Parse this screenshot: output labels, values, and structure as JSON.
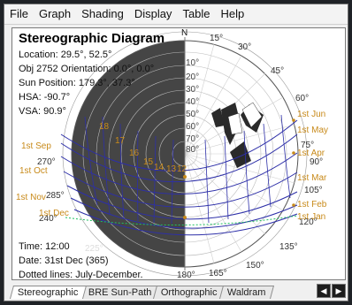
{
  "menu": [
    "File",
    "Graph",
    "Shading",
    "Display",
    "Table",
    "Help"
  ],
  "diagram": {
    "title": "Stereographic Diagram",
    "location": "Location: 29.5°, 52.5°",
    "orientation": "Obj 2752 Orientation: 0.0°, 0.0°",
    "sun_position": "Sun Position: 179.3°, 37.3°",
    "hsa": "HSA: -90.7°",
    "vsa": "VSA: 90.9°",
    "time": "Time: 12:00",
    "date": "Date: 31st Dec (365)",
    "dotted_lines": "Dotted lines: July-December.",
    "north_label": "N",
    "azimuth_labels": [
      "15°",
      "30°",
      "45°",
      "60°",
      "75°",
      "90°",
      "105°",
      "120°",
      "135°",
      "150°",
      "165°",
      "180°",
      "225°",
      "240°",
      "270°",
      "285°"
    ],
    "altitude_labels": [
      "10°",
      "20°",
      "30°",
      "40°",
      "50°",
      "60°",
      "70°",
      "80°"
    ],
    "month_labels_right": [
      "1st Jun",
      "1st May",
      "1st Apr",
      "1st Mar",
      "1st Feb",
      "1st Jan"
    ],
    "month_labels_left": [
      "1st Sep",
      "1st Oct",
      "1st Nov",
      "1st Dec"
    ],
    "hour_labels": [
      "18",
      "17",
      "16",
      "15",
      "14",
      "13",
      "12"
    ],
    "colors": {
      "shading": "#454545",
      "sun_path": "#2d2fa8",
      "hour_labels": "#c88a1a",
      "month_labels": "#c88a1a",
      "dotted": "#20c060"
    }
  },
  "tabs": [
    "Stereographic",
    "BRE Sun-Path",
    "Orthographic",
    "Waldram"
  ],
  "active_tab": "Stereographic",
  "tab_nav": [
    "◀",
    "▶"
  ]
}
